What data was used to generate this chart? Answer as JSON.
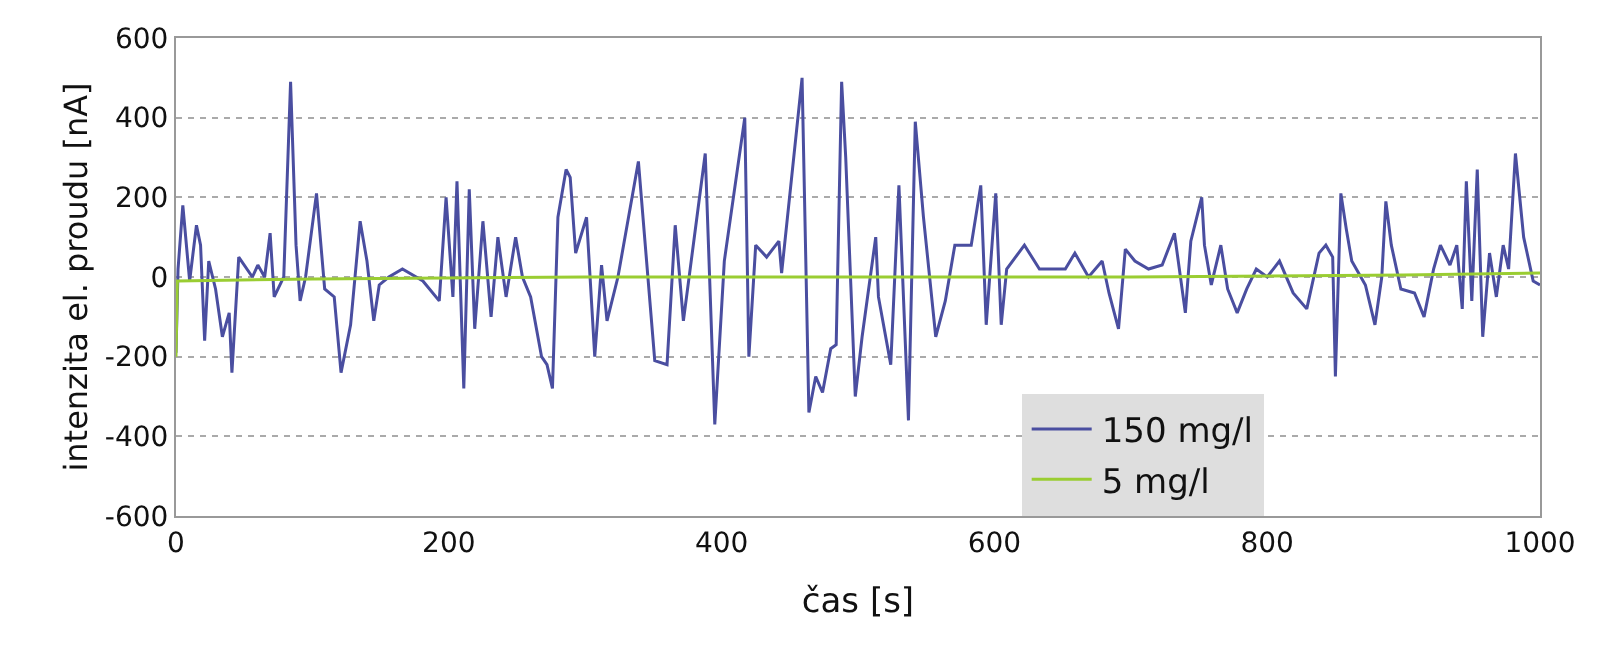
{
  "chart_data": {
    "type": "line",
    "xlabel": "čas [s]",
    "ylabel": "intenzita el. proudu [nA]",
    "xlim": [
      0,
      1000
    ],
    "xticks": [
      0,
      200,
      400,
      600,
      800,
      1000
    ],
    "ylim": [
      -600,
      600
    ],
    "yticks": [
      -600,
      -400,
      -200,
      0,
      200,
      400,
      600
    ],
    "grid": "y",
    "legend": "bottom right",
    "marker": "none",
    "line_style": "solid",
    "series": [
      {
        "name": "150 mg/l",
        "color": "#4a4ea0",
        "x": [
          0,
          1.5,
          5,
          10,
          15,
          18,
          21,
          24,
          29,
          34,
          39,
          41,
          46,
          56,
          60,
          65,
          69,
          72,
          79,
          84,
          88,
          91,
          95,
          103,
          109,
          116,
          121,
          128,
          135,
          140,
          145,
          149,
          156,
          166,
          181,
          193,
          198,
          203,
          206,
          211,
          215,
          219,
          225,
          231,
          236,
          242,
          249,
          254,
          260,
          268,
          272,
          276,
          280,
          286,
          289,
          293,
          301,
          307,
          312,
          316,
          324,
          339,
          351,
          360,
          366,
          372,
          388,
          395,
          402,
          417,
          420,
          425,
          433,
          442,
          444,
          459,
          464,
          469,
          474,
          480,
          484,
          488,
          491,
          498,
          503,
          513,
          515,
          524,
          530,
          537,
          542,
          548,
          557,
          564,
          571,
          583,
          590,
          594,
          601,
          605,
          609,
          622,
          633,
          652,
          659,
          669,
          679,
          684,
          691,
          696,
          703,
          713,
          723,
          732,
          740,
          744,
          752,
          754,
          759,
          766,
          771,
          778,
          785,
          792,
          800,
          809,
          819,
          829,
          838,
          843,
          848,
          850,
          854,
          858,
          862,
          872,
          879,
          884,
          887,
          891,
          898,
          908,
          915,
          922,
          927,
          934,
          939,
          943,
          946,
          950,
          954,
          958,
          963,
          968,
          973,
          977,
          982,
          988,
          995,
          1000
        ],
        "values": [
          -190,
          20,
          180,
          -10,
          130,
          80,
          -160,
          40,
          -30,
          -150,
          -90,
          -240,
          50,
          0,
          30,
          0,
          110,
          -50,
          0,
          490,
          80,
          -60,
          0,
          210,
          -30,
          -50,
          -240,
          -120,
          140,
          40,
          -110,
          -20,
          0,
          20,
          -10,
          -60,
          200,
          -50,
          240,
          -280,
          220,
          -130,
          140,
          -100,
          100,
          -50,
          100,
          0,
          -50,
          -200,
          -220,
          -280,
          150,
          270,
          250,
          60,
          150,
          -200,
          30,
          -110,
          0,
          290,
          -210,
          -220,
          130,
          -110,
          310,
          -370,
          40,
          400,
          -200,
          80,
          50,
          90,
          10,
          500,
          -340,
          -250,
          -290,
          -180,
          -170,
          490,
          300,
          -300,
          -150,
          100,
          -50,
          -220,
          230,
          -360,
          390,
          150,
          -150,
          -60,
          80,
          80,
          230,
          -120,
          210,
          -120,
          20,
          80,
          20,
          20,
          60,
          0,
          40,
          -40,
          -130,
          70,
          40,
          20,
          30,
          110,
          -90,
          90,
          200,
          80,
          -20,
          80,
          -30,
          -90,
          -30,
          20,
          0,
          40,
          -40,
          -80,
          60,
          80,
          50,
          -250,
          210,
          120,
          40,
          -20,
          -120,
          0,
          190,
          80,
          -30,
          -40,
          -100,
          20,
          80,
          30,
          80,
          -80,
          240,
          -60,
          270,
          -150,
          60,
          -50,
          80,
          20,
          310,
          100,
          -10,
          -20
        ]
      },
      {
        "name": "5 mg/l",
        "color": "#9acd32",
        "x": [
          0,
          1,
          100,
          300,
          500,
          700,
          900,
          1000
        ],
        "values": [
          -200,
          -10,
          -5,
          0,
          0,
          0,
          5,
          10
        ]
      }
    ]
  }
}
